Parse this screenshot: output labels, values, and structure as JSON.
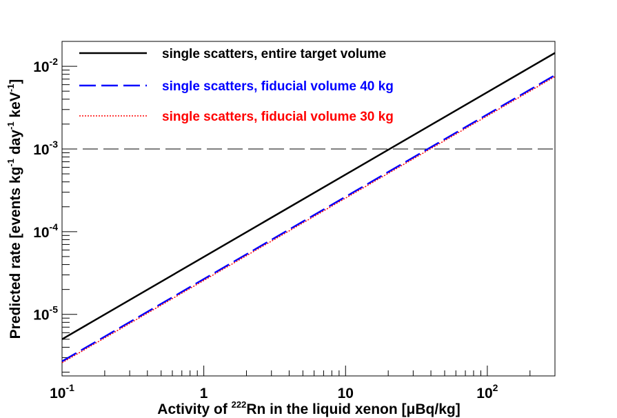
{
  "chart_data": {
    "type": "line",
    "xscale": "log",
    "yscale": "log",
    "xlim": [
      0.1,
      300
    ],
    "ylim": [
      1.8e-06,
      0.02
    ],
    "xlabel": {
      "prefix": "Activity of ",
      "sup": "222",
      "middle": "Rn in the liquid xenon [",
      "mu": "μ",
      "suffix": "Bq/kg]"
    },
    "ylabel": {
      "p1": "Predicted rate [events kg",
      "s1": "-1",
      "p2": " day",
      "s2": "-1",
      "p3": " keV",
      "s3": "-1",
      "p4": "]"
    },
    "x_ticks": [
      {
        "value": 0.1,
        "base": "10",
        "exp": "-1"
      },
      {
        "value": 1,
        "base": "1",
        "exp": ""
      },
      {
        "value": 10,
        "base": "10",
        "exp": ""
      },
      {
        "value": 100,
        "base": "10",
        "exp": "2"
      }
    ],
    "y_ticks": [
      {
        "value": 1e-05,
        "base": "10",
        "exp": "-5"
      },
      {
        "value": 0.0001,
        "base": "10",
        "exp": "-4"
      },
      {
        "value": 0.001,
        "base": "10",
        "exp": "-3"
      },
      {
        "value": 0.01,
        "base": "10",
        "exp": "-2"
      }
    ],
    "reference_line": {
      "y": 0.001,
      "color": "#000000",
      "style": "dashed"
    },
    "series": [
      {
        "name": "single scatters, entire target volume",
        "color": "#000000",
        "style": "solid",
        "x": [
          0.1,
          300
        ],
        "y": [
          5e-06,
          0.0145
        ]
      },
      {
        "name": "single scatters, fiducial volume 40 kg",
        "color": "#0000ff",
        "style": "dashed",
        "x": [
          0.1,
          300
        ],
        "y": [
          2.7e-06,
          0.0078
        ]
      },
      {
        "name": "single scatters, fiducial volume 30 kg",
        "color": "#ff0000",
        "style": "dotted",
        "x": [
          0.1,
          300
        ],
        "y": [
          2.6e-06,
          0.0075
        ]
      }
    ],
    "legend_position": "top-left",
    "grid": false
  }
}
